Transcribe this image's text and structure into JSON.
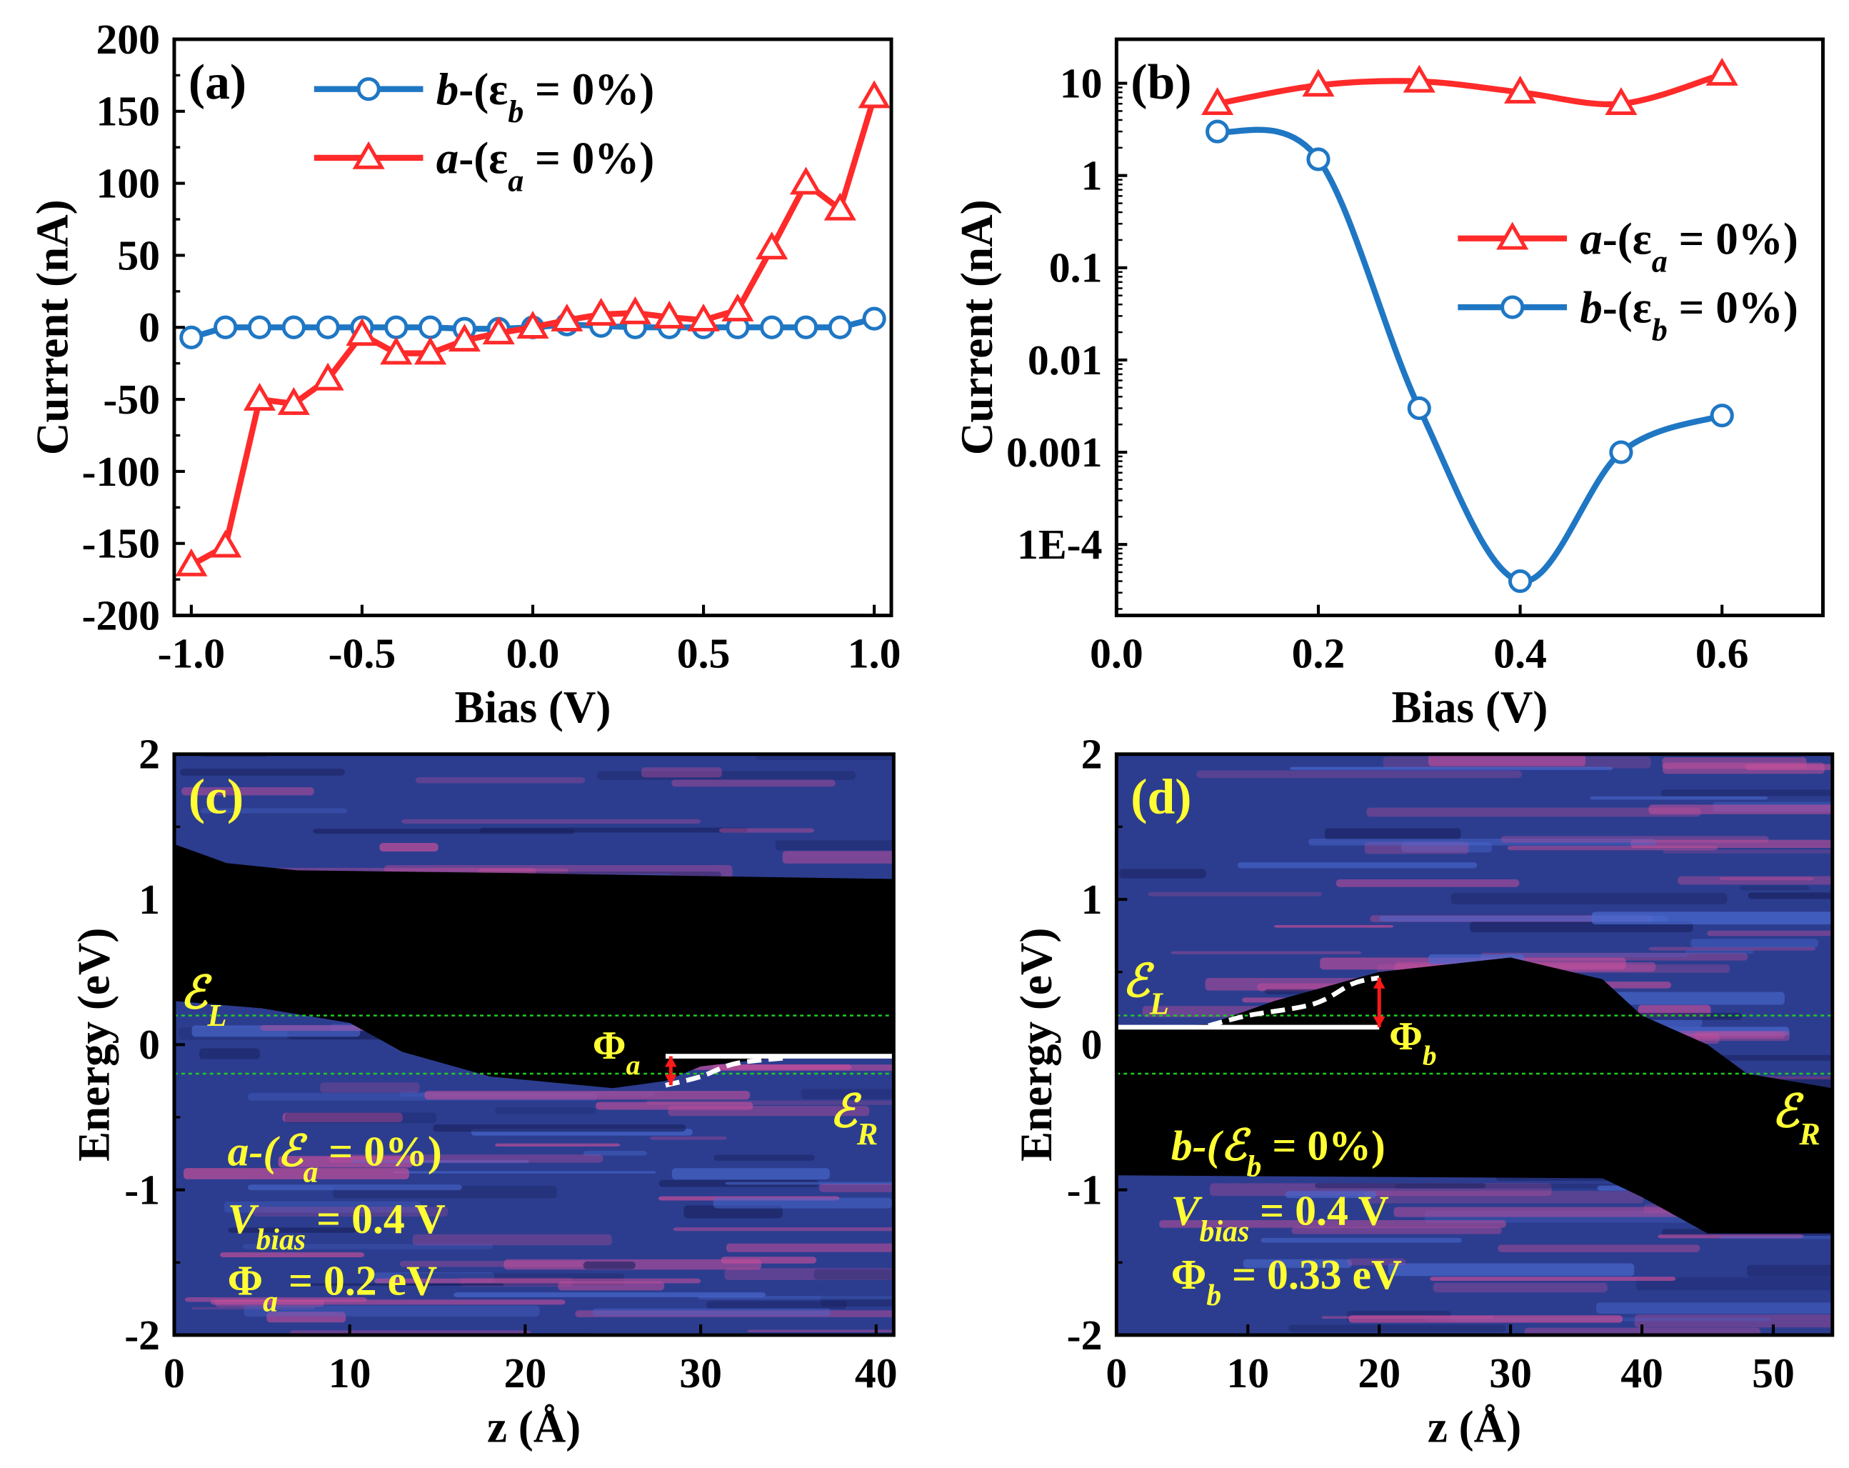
{
  "chart_data": [
    {
      "type": "line",
      "panel_label": "(a)",
      "xlabel": "Bias (V)",
      "ylabel": "Current (nA)",
      "xlim": [
        -1.05,
        1.05
      ],
      "ylim": [
        -200,
        200
      ],
      "y_scale": "linear",
      "xticks": [
        "-1.0",
        "-0.5",
        "0.0",
        "0.5",
        "1.0"
      ],
      "xtick_values": [
        -1.0,
        -0.5,
        0.0,
        0.5,
        1.0
      ],
      "yticks": [
        "200",
        "150",
        "100",
        "50",
        "0",
        "-50",
        "-100",
        "-150",
        "-200"
      ],
      "ytick_values": [
        200,
        150,
        100,
        50,
        0,
        -50,
        -100,
        -150,
        -200
      ],
      "legend_position": "top-left",
      "x": [
        -1.0,
        -0.9,
        -0.8,
        -0.7,
        -0.6,
        -0.5,
        -0.4,
        -0.3,
        -0.2,
        -0.1,
        0.0,
        0.1,
        0.2,
        0.3,
        0.4,
        0.5,
        0.6,
        0.7,
        0.8,
        0.9,
        1.0
      ],
      "series": [
        {
          "name": "b-(εb = 0%)",
          "label_pre": "b",
          "label_mid": "-(ε",
          "label_sub": "b",
          "label_end": " = 0%)",
          "color": "#1f77c4",
          "marker": "circle",
          "values": [
            -7,
            0,
            0,
            0,
            0,
            0,
            0,
            0,
            -1,
            -1,
            0,
            2,
            1,
            0,
            0,
            0,
            0,
            0,
            0,
            0,
            6
          ]
        },
        {
          "name": "a-(εa = 0%)",
          "label_pre": "a",
          "label_mid": "-(ε",
          "label_sub": "a",
          "label_end": " = 0%)",
          "color": "#ff2a2a",
          "marker": "triangle",
          "values": [
            -165,
            -152,
            -50,
            -53,
            -36,
            -5,
            -18,
            -18,
            -9,
            -4,
            0,
            5,
            9,
            10,
            7,
            5,
            12,
            55,
            100,
            82,
            160
          ]
        }
      ]
    },
    {
      "type": "line",
      "panel_label": "(b)",
      "xlabel": "Bias (V)",
      "ylabel": "Current (nA)",
      "xlim": [
        0.0,
        0.7
      ],
      "ylim": [
        1.7e-05,
        30
      ],
      "y_scale": "log",
      "xticks": [
        "0.0",
        "0.2",
        "0.4",
        "0.6"
      ],
      "xtick_values": [
        0.0,
        0.2,
        0.4,
        0.6
      ],
      "yticks": [
        "10",
        "1",
        "0.1",
        "0.01",
        "0.001",
        "1E-4"
      ],
      "ytick_values": [
        10,
        1,
        0.1,
        0.01,
        0.001,
        0.0001
      ],
      "legend_position": "center-right",
      "x": [
        0.1,
        0.2,
        0.3,
        0.4,
        0.5,
        0.6
      ],
      "series": [
        {
          "name": "a-(εa = 0%)",
          "label_pre": "a",
          "label_mid": "-(ε",
          "label_sub": "a",
          "label_end": " = 0%)",
          "color": "#ff2a2a",
          "marker": "triangle",
          "values": [
            6,
            9.5,
            10.5,
            8,
            6,
            12.5
          ]
        },
        {
          "name": "b-(εb = 0%)",
          "label_pre": "b",
          "label_mid": "-(ε",
          "label_sub": "b",
          "label_end": " = 0%)",
          "color": "#1f77c4",
          "marker": "circle",
          "values": [
            3,
            1.5,
            0.003,
            4e-05,
            0.001,
            0.0025
          ]
        }
      ]
    },
    {
      "type": "heatmap",
      "panel_label": "(c)",
      "xlabel": "z (Å)",
      "ylabel": "Energy (eV)",
      "xlim": [
        0,
        41
      ],
      "ylim": [
        -2,
        2
      ],
      "xticks": [
        "0",
        "10",
        "20",
        "30",
        "40"
      ],
      "xtick_values": [
        0,
        10,
        20,
        30,
        40
      ],
      "yticks": [
        "2",
        "1",
        "0",
        "-1",
        "-2"
      ],
      "ytick_values": [
        2,
        1,
        0,
        -1,
        -2
      ],
      "bias_window_eV": [
        -0.2,
        0.2
      ],
      "gap_top": [
        [
          0,
          1.38
        ],
        [
          3,
          1.25
        ],
        [
          7,
          1.2
        ],
        [
          20,
          1.18
        ],
        [
          41,
          1.14
        ]
      ],
      "gap_bottom": [
        [
          41,
          -0.08
        ],
        [
          35,
          -0.08
        ],
        [
          30,
          -0.15
        ],
        [
          28,
          -0.25
        ],
        [
          25,
          -0.3
        ],
        [
          18,
          -0.22
        ],
        [
          13,
          -0.05
        ],
        [
          10,
          0.15
        ],
        [
          5,
          0.25
        ],
        [
          0,
          0.3
        ]
      ],
      "barrier_flat": [
        [
          28,
          -0.08
        ],
        [
          41,
          -0.08
        ]
      ],
      "barrier_curve": [
        [
          28,
          -0.28
        ],
        [
          30,
          -0.22
        ],
        [
          32,
          -0.13
        ],
        [
          35,
          -0.09
        ]
      ],
      "barrier_arrow_z": 28.3,
      "annotations": {
        "left_lead": {
          "main": "ℰ",
          "sub": "L"
        },
        "right_lead": {
          "main": "ℰ",
          "sub": "R"
        },
        "phi_label": {
          "main": "Φ",
          "sub": "a"
        },
        "strain": {
          "pre": "a",
          "main": "-(ℰ",
          "sub": "a",
          "end": " = 0%)"
        },
        "bias": {
          "main": "V",
          "sub": "bias",
          "end": " = 0.4 V"
        },
        "phi_value": {
          "main": "Φ",
          "sub": "a",
          "end": " = 0.2 eV"
        }
      }
    },
    {
      "type": "heatmap",
      "panel_label": "(d)",
      "xlabel": "z (Å)",
      "ylabel": "Energy (eV)",
      "xlim": [
        0,
        54.5
      ],
      "ylim": [
        -2,
        2
      ],
      "xticks": [
        "0",
        "10",
        "20",
        "30",
        "40",
        "50"
      ],
      "xtick_values": [
        0,
        10,
        20,
        30,
        40,
        50
      ],
      "yticks": [
        "2",
        "1",
        "0",
        "-1",
        "-2"
      ],
      "ytick_values": [
        2,
        1,
        0,
        -1,
        -2
      ],
      "bias_window_eV": [
        -0.2,
        0.2
      ],
      "gap_top": [
        [
          0,
          0.12
        ],
        [
          7,
          0.14
        ],
        [
          12,
          0.3
        ],
        [
          20,
          0.5
        ],
        [
          30,
          0.6
        ],
        [
          37,
          0.45
        ],
        [
          40,
          0.2
        ],
        [
          45,
          0.0
        ],
        [
          48,
          -0.2
        ],
        [
          54.5,
          -0.3
        ]
      ],
      "gap_bottom": [
        [
          54.5,
          -1.3
        ],
        [
          45,
          -1.3
        ],
        [
          40,
          -1.05
        ],
        [
          37,
          -0.92
        ],
        [
          0,
          -0.9
        ]
      ],
      "barrier_flat": [
        [
          0,
          0.12
        ],
        [
          20,
          0.12
        ]
      ],
      "barrier_curve": [
        [
          7,
          0.13
        ],
        [
          10,
          0.2
        ],
        [
          15,
          0.28
        ],
        [
          18,
          0.42
        ],
        [
          20,
          0.46
        ]
      ],
      "barrier_arrow_z": 20,
      "annotations": {
        "left_lead": {
          "main": "ℰ",
          "sub": "L"
        },
        "right_lead": {
          "main": "ℰ",
          "sub": "R"
        },
        "phi_label": {
          "main": "Φ",
          "sub": "b"
        },
        "strain": {
          "pre": "b",
          "main": "-(ℰ",
          "sub": "b",
          "end": " = 0%)"
        },
        "bias": {
          "main": "V",
          "sub": "bias",
          "end": " = 0.4 V"
        },
        "phi_value": {
          "main": "Φ",
          "sub": "b",
          "end": " = 0.33 eV"
        }
      }
    }
  ],
  "colors": {
    "axis": "#000000",
    "annotation": "#ffff33",
    "heat_base": "#2c3d8f",
    "heat_hot": "#c64f9a",
    "gap": "#000000",
    "bias_line": "#22cc22",
    "arrow": "#ff1a1a"
  }
}
